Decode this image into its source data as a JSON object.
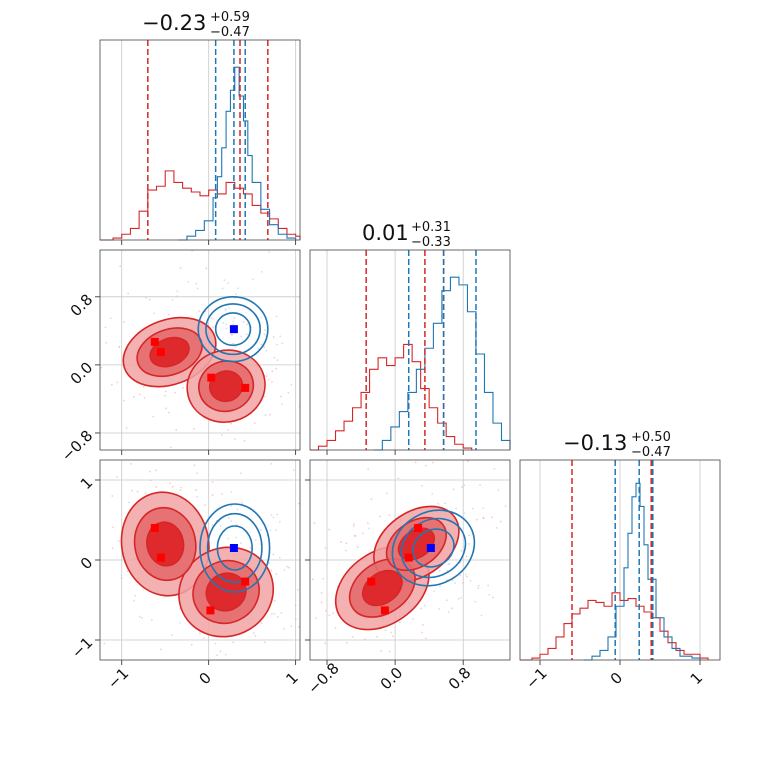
{
  "colors": {
    "red": "#d62728",
    "blue": "#1f77b4",
    "red_fill_light": "#f1a3a5",
    "red_fill_dark": "#de2a2c",
    "marker_red": "#ff0000",
    "marker_blue": "#0000ff"
  },
  "chart_data": {
    "type": "corner",
    "grid": true,
    "parameters": [
      {
        "title_value": "−0.23",
        "title_plus": "+0.59",
        "title_minus": "−0.47",
        "range": [
          -1.25,
          1.05
        ],
        "ticks": [
          -1,
          0,
          1
        ],
        "tick_labels": [
          "−1",
          "0",
          "1"
        ]
      },
      {
        "title_value": "0.01",
        "title_plus": "+0.31",
        "title_minus": "−0.33",
        "range": [
          -1.0,
          1.35
        ],
        "ticks": [
          -0.8,
          0.0,
          0.8
        ],
        "tick_labels": [
          "−0.8",
          "0.0",
          "0.8"
        ]
      },
      {
        "title_value": "−0.13",
        "title_plus": "+0.50",
        "title_minus": "−0.47",
        "range": [
          -1.25,
          1.25
        ],
        "ticks": [
          -1,
          0,
          1
        ],
        "tick_labels": [
          "−1",
          "0",
          "1"
        ]
      }
    ],
    "diagonal": [
      {
        "red_quantiles": [
          -0.7,
          0.36,
          0.68
        ],
        "blue_quantiles": [
          0.08,
          0.29,
          0.42
        ],
        "red_hist": [
          [
            -1.25,
            0
          ],
          [
            -1.1,
            0.01
          ],
          [
            -1.0,
            0.03
          ],
          [
            -0.9,
            0.06
          ],
          [
            -0.8,
            0.15
          ],
          [
            -0.7,
            0.26
          ],
          [
            -0.6,
            0.28
          ],
          [
            -0.5,
            0.36
          ],
          [
            -0.4,
            0.3
          ],
          [
            -0.3,
            0.27
          ],
          [
            -0.2,
            0.25
          ],
          [
            -0.1,
            0.23
          ],
          [
            0.0,
            0.26
          ],
          [
            0.1,
            0.24
          ],
          [
            0.2,
            0.3
          ],
          [
            0.3,
            0.27
          ],
          [
            0.4,
            0.24
          ],
          [
            0.5,
            0.18
          ],
          [
            0.6,
            0.14
          ],
          [
            0.7,
            0.11
          ],
          [
            0.8,
            0.06
          ],
          [
            0.9,
            0.03
          ],
          [
            1.0,
            0.02
          ],
          [
            1.05,
            0
          ]
        ],
        "blue_hist": [
          [
            -0.35,
            0
          ],
          [
            -0.25,
            0.02
          ],
          [
            -0.15,
            0.05
          ],
          [
            -0.05,
            0.1
          ],
          [
            0.05,
            0.22
          ],
          [
            0.1,
            0.33
          ],
          [
            0.15,
            0.48
          ],
          [
            0.2,
            0.67
          ],
          [
            0.25,
            0.78
          ],
          [
            0.3,
            0.9
          ],
          [
            0.35,
            0.75
          ],
          [
            0.4,
            0.62
          ],
          [
            0.45,
            0.44
          ],
          [
            0.5,
            0.3
          ],
          [
            0.6,
            0.16
          ],
          [
            0.7,
            0.08
          ],
          [
            0.8,
            0.03
          ],
          [
            0.9,
            0.01
          ],
          [
            1.0,
            0
          ]
        ]
      },
      {
        "red_quantiles": [
          -0.34,
          0.35,
          0.57
        ],
        "blue_quantiles": [
          0.16,
          0.57,
          0.95
        ],
        "red_hist": [
          [
            -1.0,
            0
          ],
          [
            -0.9,
            0.02
          ],
          [
            -0.8,
            0.05
          ],
          [
            -0.7,
            0.1
          ],
          [
            -0.6,
            0.15
          ],
          [
            -0.5,
            0.22
          ],
          [
            -0.4,
            0.3
          ],
          [
            -0.3,
            0.42
          ],
          [
            -0.2,
            0.48
          ],
          [
            -0.1,
            0.44
          ],
          [
            0.0,
            0.48
          ],
          [
            0.1,
            0.55
          ],
          [
            0.2,
            0.46
          ],
          [
            0.3,
            0.32
          ],
          [
            0.4,
            0.22
          ],
          [
            0.5,
            0.14
          ],
          [
            0.6,
            0.07
          ],
          [
            0.7,
            0.03
          ],
          [
            0.8,
            0.01
          ],
          [
            0.9,
            0
          ]
        ],
        "blue_hist": [
          [
            -0.25,
            0
          ],
          [
            -0.15,
            0.05
          ],
          [
            -0.05,
            0.12
          ],
          [
            0.05,
            0.2
          ],
          [
            0.15,
            0.3
          ],
          [
            0.25,
            0.42
          ],
          [
            0.35,
            0.53
          ],
          [
            0.45,
            0.66
          ],
          [
            0.55,
            0.83
          ],
          [
            0.65,
            0.9
          ],
          [
            0.75,
            0.86
          ],
          [
            0.85,
            0.72
          ],
          [
            0.95,
            0.5
          ],
          [
            1.05,
            0.3
          ],
          [
            1.15,
            0.14
          ],
          [
            1.25,
            0.05
          ],
          [
            1.35,
            0
          ]
        ]
      },
      {
        "red_quantiles": [
          -0.6,
          0.39,
          0.4
        ],
        "blue_quantiles": [
          -0.06,
          0.24,
          0.41
        ],
        "red_hist": [
          [
            -1.25,
            0
          ],
          [
            -1.1,
            0.01
          ],
          [
            -1.0,
            0.03
          ],
          [
            -0.9,
            0.06
          ],
          [
            -0.8,
            0.12
          ],
          [
            -0.7,
            0.19
          ],
          [
            -0.6,
            0.24
          ],
          [
            -0.5,
            0.27
          ],
          [
            -0.4,
            0.31
          ],
          [
            -0.3,
            0.3
          ],
          [
            -0.2,
            0.28
          ],
          [
            -0.1,
            0.35
          ],
          [
            0.0,
            0.31
          ],
          [
            0.1,
            0.32
          ],
          [
            0.2,
            0.28
          ],
          [
            0.3,
            0.25
          ],
          [
            0.4,
            0.22
          ],
          [
            0.5,
            0.15
          ],
          [
            0.6,
            0.09
          ],
          [
            0.7,
            0.05
          ],
          [
            0.8,
            0.03
          ],
          [
            1.0,
            0.01
          ],
          [
            1.1,
            0
          ]
        ],
        "blue_hist": [
          [
            -0.45,
            0
          ],
          [
            -0.35,
            0.02
          ],
          [
            -0.25,
            0.05
          ],
          [
            -0.15,
            0.12
          ],
          [
            -0.05,
            0.28
          ],
          [
            0.05,
            0.48
          ],
          [
            0.1,
            0.66
          ],
          [
            0.15,
            0.85
          ],
          [
            0.2,
            0.92
          ],
          [
            0.25,
            0.8
          ],
          [
            0.3,
            0.6
          ],
          [
            0.35,
            0.42
          ],
          [
            0.45,
            0.22
          ],
          [
            0.55,
            0.12
          ],
          [
            0.65,
            0.06
          ],
          [
            0.75,
            0.02
          ],
          [
            0.9,
            0.01
          ],
          [
            1.0,
            0
          ]
        ]
      }
    ],
    "off_diagonal": [
      {
        "x_param": 0,
        "y_param": 1,
        "red_blobs": [
          {
            "cx": -0.45,
            "cy": 0.15,
            "rx": 0.55,
            "ry": 0.38,
            "rot": -20
          },
          {
            "cx": 0.2,
            "cy": -0.25,
            "rx": 0.45,
            "ry": 0.42,
            "rot": -15
          }
        ],
        "blue_blobs": [
          {
            "cx": 0.28,
            "cy": 0.42,
            "rx": 0.4,
            "ry": 0.38,
            "rot": 0
          }
        ],
        "red_markers": [
          [
            -0.62,
            0.27
          ],
          [
            -0.55,
            0.15
          ],
          [
            0.03,
            -0.15
          ],
          [
            0.42,
            -0.27
          ]
        ],
        "blue_markers": [
          [
            0.29,
            0.42
          ]
        ]
      },
      {
        "x_param": 0,
        "y_param": 2,
        "red_blobs": [
          {
            "cx": -0.5,
            "cy": 0.2,
            "rx": 0.5,
            "ry": 0.65,
            "rot": -10
          },
          {
            "cx": 0.2,
            "cy": -0.4,
            "rx": 0.55,
            "ry": 0.55,
            "rot": -25
          }
        ],
        "blue_blobs": [
          {
            "cx": 0.3,
            "cy": 0.15,
            "rx": 0.4,
            "ry": 0.55,
            "rot": 0
          }
        ],
        "red_markers": [
          [
            -0.62,
            0.4
          ],
          [
            -0.55,
            0.03
          ],
          [
            0.02,
            -0.63
          ],
          [
            0.42,
            -0.27
          ]
        ],
        "blue_markers": [
          [
            0.29,
            0.15
          ]
        ]
      },
      {
        "x_param": 1,
        "y_param": 2,
        "red_blobs": [
          {
            "cx": -0.15,
            "cy": -0.35,
            "rx": 0.6,
            "ry": 0.45,
            "rot": -35
          },
          {
            "cx": 0.25,
            "cy": 0.2,
            "rx": 0.55,
            "ry": 0.4,
            "rot": -35
          }
        ],
        "blue_blobs": [
          {
            "cx": 0.45,
            "cy": 0.15,
            "rx": 0.5,
            "ry": 0.45,
            "rot": -30
          }
        ],
        "red_markers": [
          [
            -0.28,
            -0.27
          ],
          [
            -0.12,
            -0.63
          ],
          [
            0.16,
            0.03
          ],
          [
            0.27,
            0.4
          ]
        ],
        "blue_markers": [
          [
            0.42,
            0.15
          ]
        ]
      }
    ]
  }
}
